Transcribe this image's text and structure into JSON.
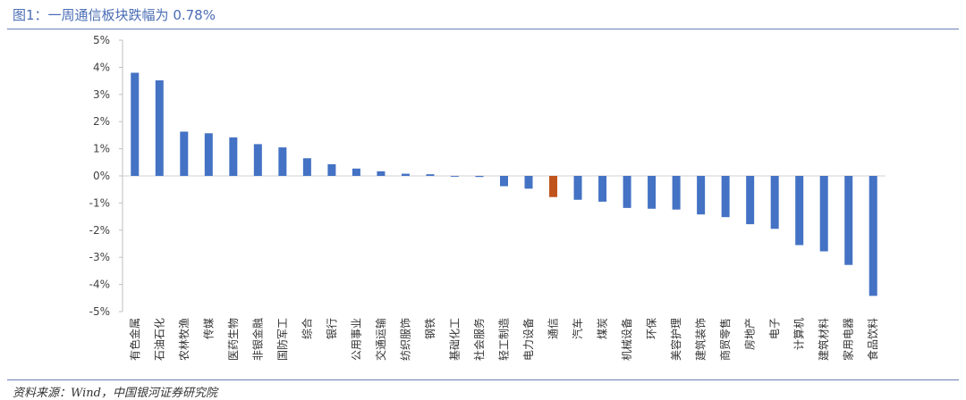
{
  "title": "图1：一周通信板块跌幅为 0.78%",
  "source": "资料来源：Wind，中国银河证券研究院",
  "chart_data": {
    "type": "bar",
    "title": "图1：一周通信板块跌幅为 0.78%",
    "xlabel": "",
    "ylabel": "",
    "ylim": [
      -5,
      5
    ],
    "yticks": [
      5,
      4,
      3,
      2,
      1,
      0,
      -1,
      -2,
      -3,
      -4,
      -5
    ],
    "ytick_labels": [
      "5%",
      "4%",
      "3%",
      "2%",
      "1%",
      "0%",
      "-1%",
      "-2%",
      "-3%",
      "-4%",
      "-5%"
    ],
    "grid": false,
    "legend": "none",
    "colors": {
      "default": "#4472c4",
      "highlight": "#c0531b"
    },
    "highlight_category": "通信",
    "categories": [
      "有色金属",
      "石油石化",
      "农林牧渔",
      "传媒",
      "医药生物",
      "非银金融",
      "国防军工",
      "综合",
      "银行",
      "公用事业",
      "交通运输",
      "纺织服饰",
      "钢铁",
      "基础化工",
      "社会服务",
      "轻工制造",
      "电力设备",
      "通信",
      "汽车",
      "煤炭",
      "机械设备",
      "环保",
      "美容护理",
      "建筑装饰",
      "商贸零售",
      "房地产",
      "电子",
      "计算机",
      "建筑材料",
      "家用电器",
      "食品饮料"
    ],
    "values": [
      3.8,
      3.52,
      1.63,
      1.57,
      1.42,
      1.17,
      1.05,
      0.65,
      0.43,
      0.27,
      0.17,
      0.08,
      0.06,
      -0.03,
      -0.04,
      -0.38,
      -0.47,
      -0.78,
      -0.88,
      -0.95,
      -1.18,
      -1.21,
      -1.24,
      -1.42,
      -1.52,
      -1.78,
      -1.95,
      -2.55,
      -2.78,
      -3.28,
      -4.42
    ]
  }
}
